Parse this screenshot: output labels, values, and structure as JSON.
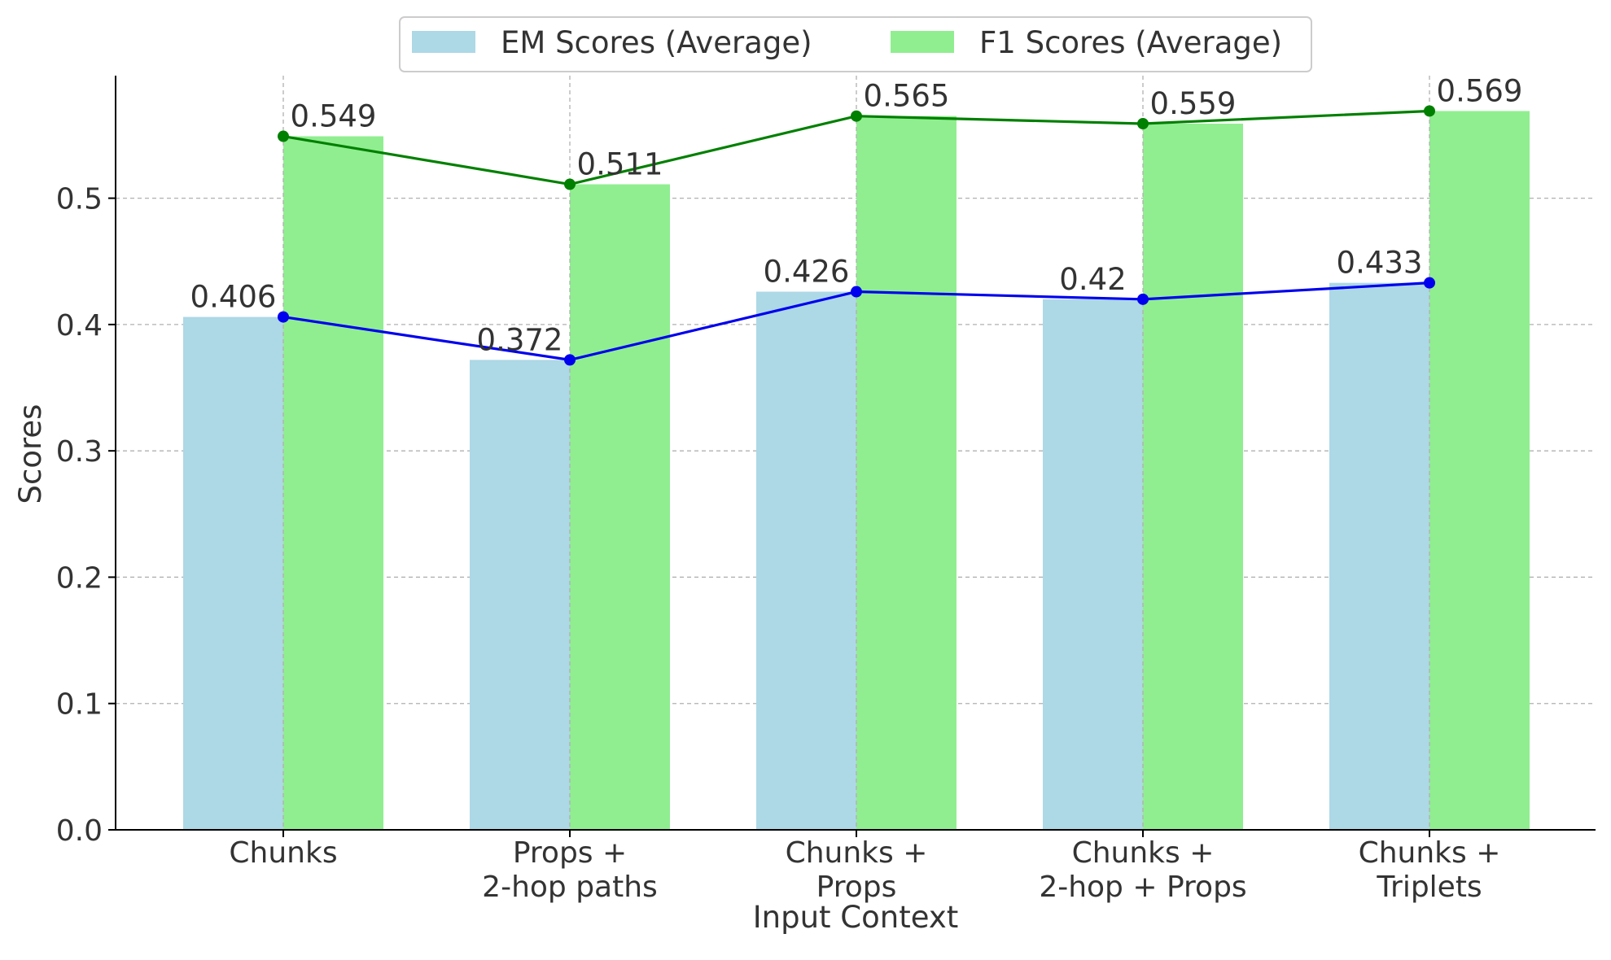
{
  "chart_data": {
    "type": "bar",
    "title": "",
    "xlabel": "Input Context",
    "ylabel": "Scores",
    "ylim": [
      0,
      0.597
    ],
    "yticks": [
      0.0,
      0.1,
      0.2,
      0.3,
      0.4,
      0.5
    ],
    "ytick_labels": [
      "0.0",
      "0.1",
      "0.2",
      "0.3",
      "0.4",
      "0.5"
    ],
    "grid": true,
    "legend_position": "top-center",
    "categories": [
      [
        "Chunks"
      ],
      [
        "Props +",
        "2-hop paths"
      ],
      [
        "Chunks +",
        "Props"
      ],
      [
        "Chunks +",
        "2-hop + Props"
      ],
      [
        "Chunks +",
        "Triplets"
      ]
    ],
    "series": [
      {
        "name": "EM Scores (Average)",
        "values": [
          0.406,
          0.372,
          0.426,
          0.42,
          0.433
        ],
        "labels": [
          "0.406",
          "0.372",
          "0.426",
          "0.42",
          "0.433"
        ],
        "bar_color": "#add8e6",
        "line_color": "#0000ee"
      },
      {
        "name": "F1 Scores (Average)",
        "values": [
          0.549,
          0.511,
          0.565,
          0.559,
          0.569
        ],
        "labels": [
          "0.549",
          "0.511",
          "0.565",
          "0.559",
          "0.569"
        ],
        "bar_color": "#90ee90",
        "line_color": "#008000"
      }
    ]
  }
}
